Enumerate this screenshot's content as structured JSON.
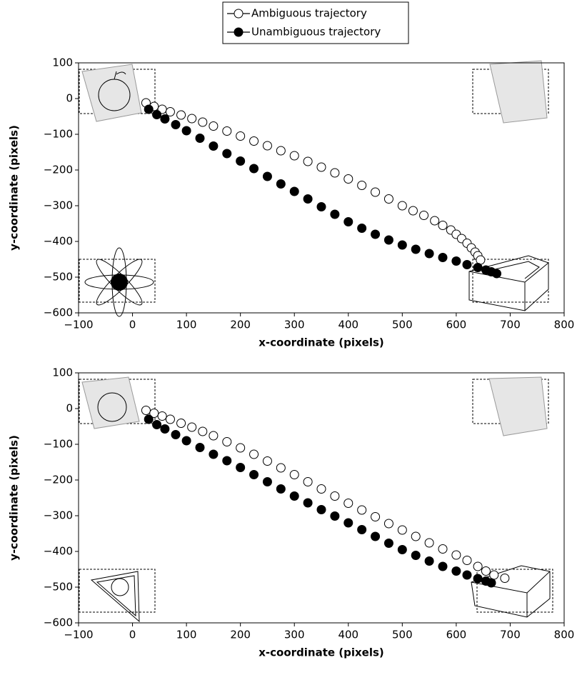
{
  "chart_data": [
    {
      "type": "scatter",
      "xlabel": "x-coordinate (pixels)",
      "ylabel": "y-coordinate (pixels)",
      "legend": "top",
      "xlim": [
        -100,
        800
      ],
      "xticks": [
        {
          "value": -100,
          "label": "−100"
        },
        0,
        100,
        200,
        300,
        400,
        500,
        600,
        700,
        800
      ],
      "ylim": [
        -600,
        100
      ],
      "yticks": [
        100,
        0,
        {
          "value": -100,
          "label": "−100"
        },
        {
          "value": -200,
          "label": "−200"
        },
        {
          "value": -300,
          "label": "−300"
        },
        {
          "value": -400,
          "label": "−400"
        },
        {
          "value": -500,
          "label": "−500"
        },
        {
          "value": -600,
          "label": "−600"
        }
      ],
      "series": [
        {
          "name": "Ambiguous trajectory",
          "color": "#000000",
          "marker_fill": "#ffffff",
          "x": [
            25,
            40,
            55,
            70,
            90,
            110,
            130,
            150,
            175,
            200,
            225,
            250,
            275,
            300,
            325,
            350,
            375,
            400,
            425,
            450,
            475,
            500,
            520,
            540,
            560,
            575,
            590,
            600,
            610,
            620,
            628,
            635,
            640,
            645
          ],
          "values": [
            -12,
            -22,
            -30,
            -37,
            -46,
            -56,
            -66,
            -77,
            -91,
            -105,
            -119,
            -132,
            -146,
            -160,
            -176,
            -192,
            -208,
            -225,
            -243,
            -262,
            -281,
            -300,
            -314,
            -327,
            -342,
            -355,
            -368,
            -380,
            -392,
            -405,
            -418,
            -430,
            -440,
            -452
          ]
        },
        {
          "name": "Unambiguous trajectory",
          "color": "#000000",
          "marker_fill": "#000000",
          "x": [
            30,
            45,
            60,
            80,
            100,
            125,
            150,
            175,
            200,
            225,
            250,
            275,
            300,
            325,
            350,
            375,
            400,
            425,
            450,
            475,
            500,
            525,
            550,
            575,
            600,
            620,
            640,
            655,
            665,
            675
          ],
          "values": [
            -30,
            -45,
            -57,
            -73,
            -90,
            -111,
            -133,
            -154,
            -175,
            -196,
            -218,
            -239,
            -260,
            -281,
            -303,
            -324,
            -345,
            -363,
            -380,
            -396,
            -410,
            -422,
            -434,
            -445,
            -455,
            -465,
            -473,
            -480,
            -485,
            -490
          ]
        }
      ]
    },
    {
      "type": "scatter",
      "xlabel": "x-coordinate (pixels)",
      "ylabel": "y-coordinate (pixels)",
      "xlim": [
        -100,
        800
      ],
      "xticks": [
        {
          "value": -100,
          "label": "−100"
        },
        0,
        100,
        200,
        300,
        400,
        500,
        600,
        700,
        800
      ],
      "ylim": [
        -600,
        100
      ],
      "yticks": [
        100,
        0,
        {
          "value": -100,
          "label": "−100"
        },
        {
          "value": -200,
          "label": "−200"
        },
        {
          "value": -300,
          "label": "−300"
        },
        {
          "value": -400,
          "label": "−400"
        },
        {
          "value": -500,
          "label": "−500"
        },
        {
          "value": -600,
          "label": "−600"
        }
      ],
      "series": [
        {
          "color": "#000000",
          "marker_fill": "#ffffff",
          "x": [
            25,
            40,
            55,
            70,
            90,
            110,
            130,
            150,
            175,
            200,
            225,
            250,
            275,
            300,
            325,
            350,
            375,
            400,
            425,
            450,
            475,
            500,
            525,
            550,
            575,
            600,
            620,
            640,
            655,
            670,
            690
          ],
          "values": [
            -5,
            -13,
            -21,
            -30,
            -41,
            -52,
            -64,
            -76,
            -93,
            -110,
            -128,
            -147,
            -166,
            -185,
            -205,
            -225,
            -245,
            -265,
            -284,
            -303,
            -322,
            -340,
            -358,
            -376,
            -393,
            -410,
            -425,
            -442,
            -455,
            -466,
            -475
          ]
        },
        {
          "color": "#000000",
          "marker_fill": "#000000",
          "x": [
            30,
            45,
            60,
            80,
            100,
            125,
            150,
            175,
            200,
            225,
            250,
            275,
            300,
            325,
            350,
            375,
            400,
            425,
            450,
            475,
            500,
            525,
            550,
            575,
            600,
            620,
            640,
            655,
            665
          ],
          "values": [
            -30,
            -45,
            -57,
            -73,
            -90,
            -109,
            -128,
            -146,
            -165,
            -185,
            -205,
            -225,
            -245,
            -264,
            -283,
            -301,
            -320,
            -339,
            -358,
            -377,
            -395,
            -411,
            -427,
            -442,
            -455,
            -466,
            -476,
            -483,
            -488
          ]
        }
      ]
    }
  ]
}
